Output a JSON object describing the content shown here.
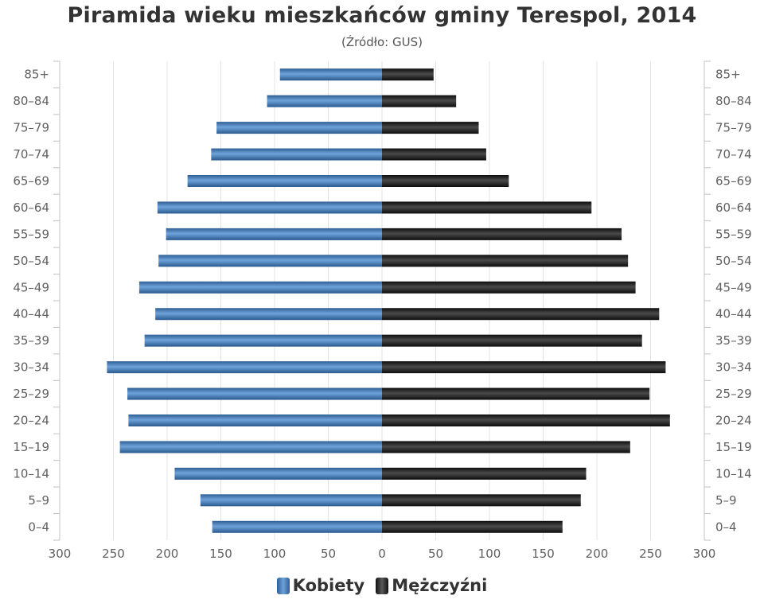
{
  "chart_data": {
    "type": "bar",
    "title": "Piramida wieku mieszkańców gminy Terespol, 2014",
    "subtitle": "(Źródło: GUS)",
    "categories": [
      "85+",
      "80–84",
      "75–79",
      "70–74",
      "65–69",
      "60–64",
      "55–59",
      "50–54",
      "45–49",
      "40–44",
      "35–39",
      "30–34",
      "25–29",
      "20–24",
      "15–19",
      "10–14",
      "5–9",
      "0–4"
    ],
    "series": [
      {
        "name": "Kobiety",
        "side": "left",
        "color": "#3d78b8",
        "values": [
          95,
          107,
          154,
          159,
          181,
          209,
          201,
          208,
          226,
          211,
          221,
          256,
          237,
          236,
          244,
          193,
          169,
          158
        ]
      },
      {
        "name": "Mężczyźni",
        "side": "right",
        "color": "#1a1a1a",
        "values": [
          48,
          69,
          90,
          97,
          118,
          195,
          223,
          229,
          236,
          258,
          242,
          264,
          249,
          268,
          231,
          190,
          185,
          168
        ]
      }
    ],
    "x_ticks": [
      300,
      250,
      200,
      150,
      100,
      50,
      0,
      50,
      100,
      150,
      200,
      250,
      300
    ],
    "xlim": [
      -300,
      300
    ],
    "grid": true,
    "legend_position": "bottom-center"
  }
}
